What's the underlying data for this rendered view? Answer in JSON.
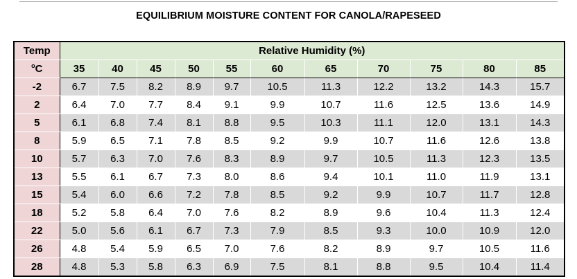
{
  "title": "EQUILIBRIUM MOISTURE CONTENT FOR CANOLA/RAPESEED",
  "header": {
    "temp_label": "Temp",
    "temp_unit_sup": "o",
    "temp_unit": "C",
    "rh_label": "Relative Humidity (%)",
    "columns": [
      "35",
      "40",
      "45",
      "50",
      "55",
      "60",
      "65",
      "70",
      "75",
      "80",
      "85"
    ]
  },
  "rows": [
    {
      "temp": "-2",
      "values": [
        "6.7",
        "7.5",
        "8.2",
        "8.9",
        "9.7",
        "10.5",
        "11.3",
        "12.2",
        "13.2",
        "14.3",
        "15.7"
      ]
    },
    {
      "temp": "2",
      "values": [
        "6.4",
        "7.0",
        "7.7",
        "8.4",
        "9.1",
        "9.9",
        "10.7",
        "11.6",
        "12.5",
        "13.6",
        "14.9"
      ]
    },
    {
      "temp": "5",
      "values": [
        "6.1",
        "6.8",
        "7.4",
        "8.1",
        "8.8",
        "9.5",
        "10.3",
        "11.1",
        "12.0",
        "13.1",
        "14.3"
      ]
    },
    {
      "temp": "8",
      "values": [
        "5.9",
        "6.5",
        "7.1",
        "7.8",
        "8.5",
        "9.2",
        "9.9",
        "10.7",
        "11.6",
        "12.6",
        "13.8"
      ]
    },
    {
      "temp": "10",
      "values": [
        "5.7",
        "6.3",
        "7.0",
        "7.6",
        "8.3",
        "8.9",
        "9.7",
        "10.5",
        "11.3",
        "12.3",
        "13.5"
      ]
    },
    {
      "temp": "13",
      "values": [
        "5.5",
        "6.1",
        "6.7",
        "7.3",
        "8.0",
        "8.6",
        "9.4",
        "10.1",
        "11.0",
        "11.9",
        "13.1"
      ]
    },
    {
      "temp": "15",
      "values": [
        "5.4",
        "6.0",
        "6.6",
        "7.2",
        "7.8",
        "8.5",
        "9.2",
        "9.9",
        "10.7",
        "11.7",
        "12.8"
      ]
    },
    {
      "temp": "18",
      "values": [
        "5.2",
        "5.8",
        "6.4",
        "7.0",
        "7.6",
        "8.2",
        "8.9",
        "9.6",
        "10.4",
        "11.3",
        "12.4"
      ]
    },
    {
      "temp": "22",
      "values": [
        "5.0",
        "5.6",
        "6.1",
        "6.7",
        "7.3",
        "7.9",
        "8.5",
        "9.3",
        "10.0",
        "10.9",
        "12.0"
      ]
    },
    {
      "temp": "26",
      "values": [
        "4.8",
        "5.4",
        "5.9",
        "6.5",
        "7.0",
        "7.6",
        "8.2",
        "8.9",
        "9.7",
        "10.5",
        "11.6"
      ]
    },
    {
      "temp": "28",
      "values": [
        "4.8",
        "5.3",
        "5.8",
        "6.3",
        "6.9",
        "7.5",
        "8.1",
        "8.8",
        "9.5",
        "10.4",
        "11.4"
      ]
    }
  ],
  "colors": {
    "temp_column_bg": "#efd5d6",
    "header_bg": "#ddead3",
    "shaded_row_bg": "#d9d9d9",
    "border": "#000000"
  }
}
